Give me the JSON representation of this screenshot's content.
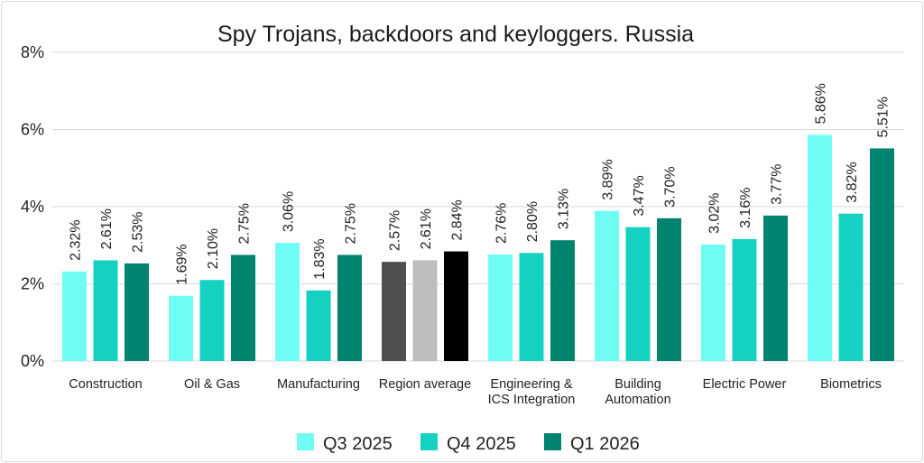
{
  "chart_data": {
    "type": "bar",
    "title": "Spy Trojans, backdoors and keyloggers. Russia",
    "xlabel": "",
    "ylabel": "",
    "ylim": [
      0,
      8
    ],
    "yticks": [
      0,
      2,
      4,
      6,
      8
    ],
    "ytick_labels": [
      "0%",
      "2%",
      "4%",
      "6%",
      "8%"
    ],
    "grid": true,
    "legend_position": "bottom",
    "categories": [
      [
        "Construction"
      ],
      [
        "Oil & Gas"
      ],
      [
        "Manufacturing"
      ],
      [
        "Region average"
      ],
      [
        "Engineering &",
        "ICS Integration"
      ],
      [
        "Building",
        "Automation"
      ],
      [
        "Electric Power"
      ],
      [
        "Biometrics"
      ]
    ],
    "series": [
      {
        "name": "Q3 2025",
        "color": "#6ffcf5",
        "values": [
          2.32,
          1.69,
          3.06,
          2.57,
          2.76,
          3.89,
          3.02,
          5.86
        ],
        "labels": [
          "2.32%",
          "1.69%",
          "3.06%",
          "2.57%",
          "2.76%",
          "3.89%",
          "3.02%",
          "5.86%"
        ]
      },
      {
        "name": "Q4 2025",
        "color": "#14d1c1",
        "values": [
          2.61,
          2.1,
          1.83,
          2.61,
          2.8,
          3.47,
          3.16,
          3.82
        ],
        "labels": [
          "2.61%",
          "2.10%",
          "1.83%",
          "2.61%",
          "2.80%",
          "3.47%",
          "3.16%",
          "3.82%"
        ]
      },
      {
        "name": "Q1 2026",
        "color": "#00836f",
        "values": [
          2.53,
          2.75,
          2.75,
          2.84,
          3.13,
          3.7,
          3.77,
          5.51
        ],
        "labels": [
          "2.53%",
          "2.75%",
          "2.75%",
          "2.84%",
          "3.13%",
          "3.70%",
          "3.77%",
          "5.51%"
        ]
      }
    ],
    "region_average_colors": [
      "#4f4f4f",
      "#bdbdbd",
      "#000000"
    ]
  }
}
